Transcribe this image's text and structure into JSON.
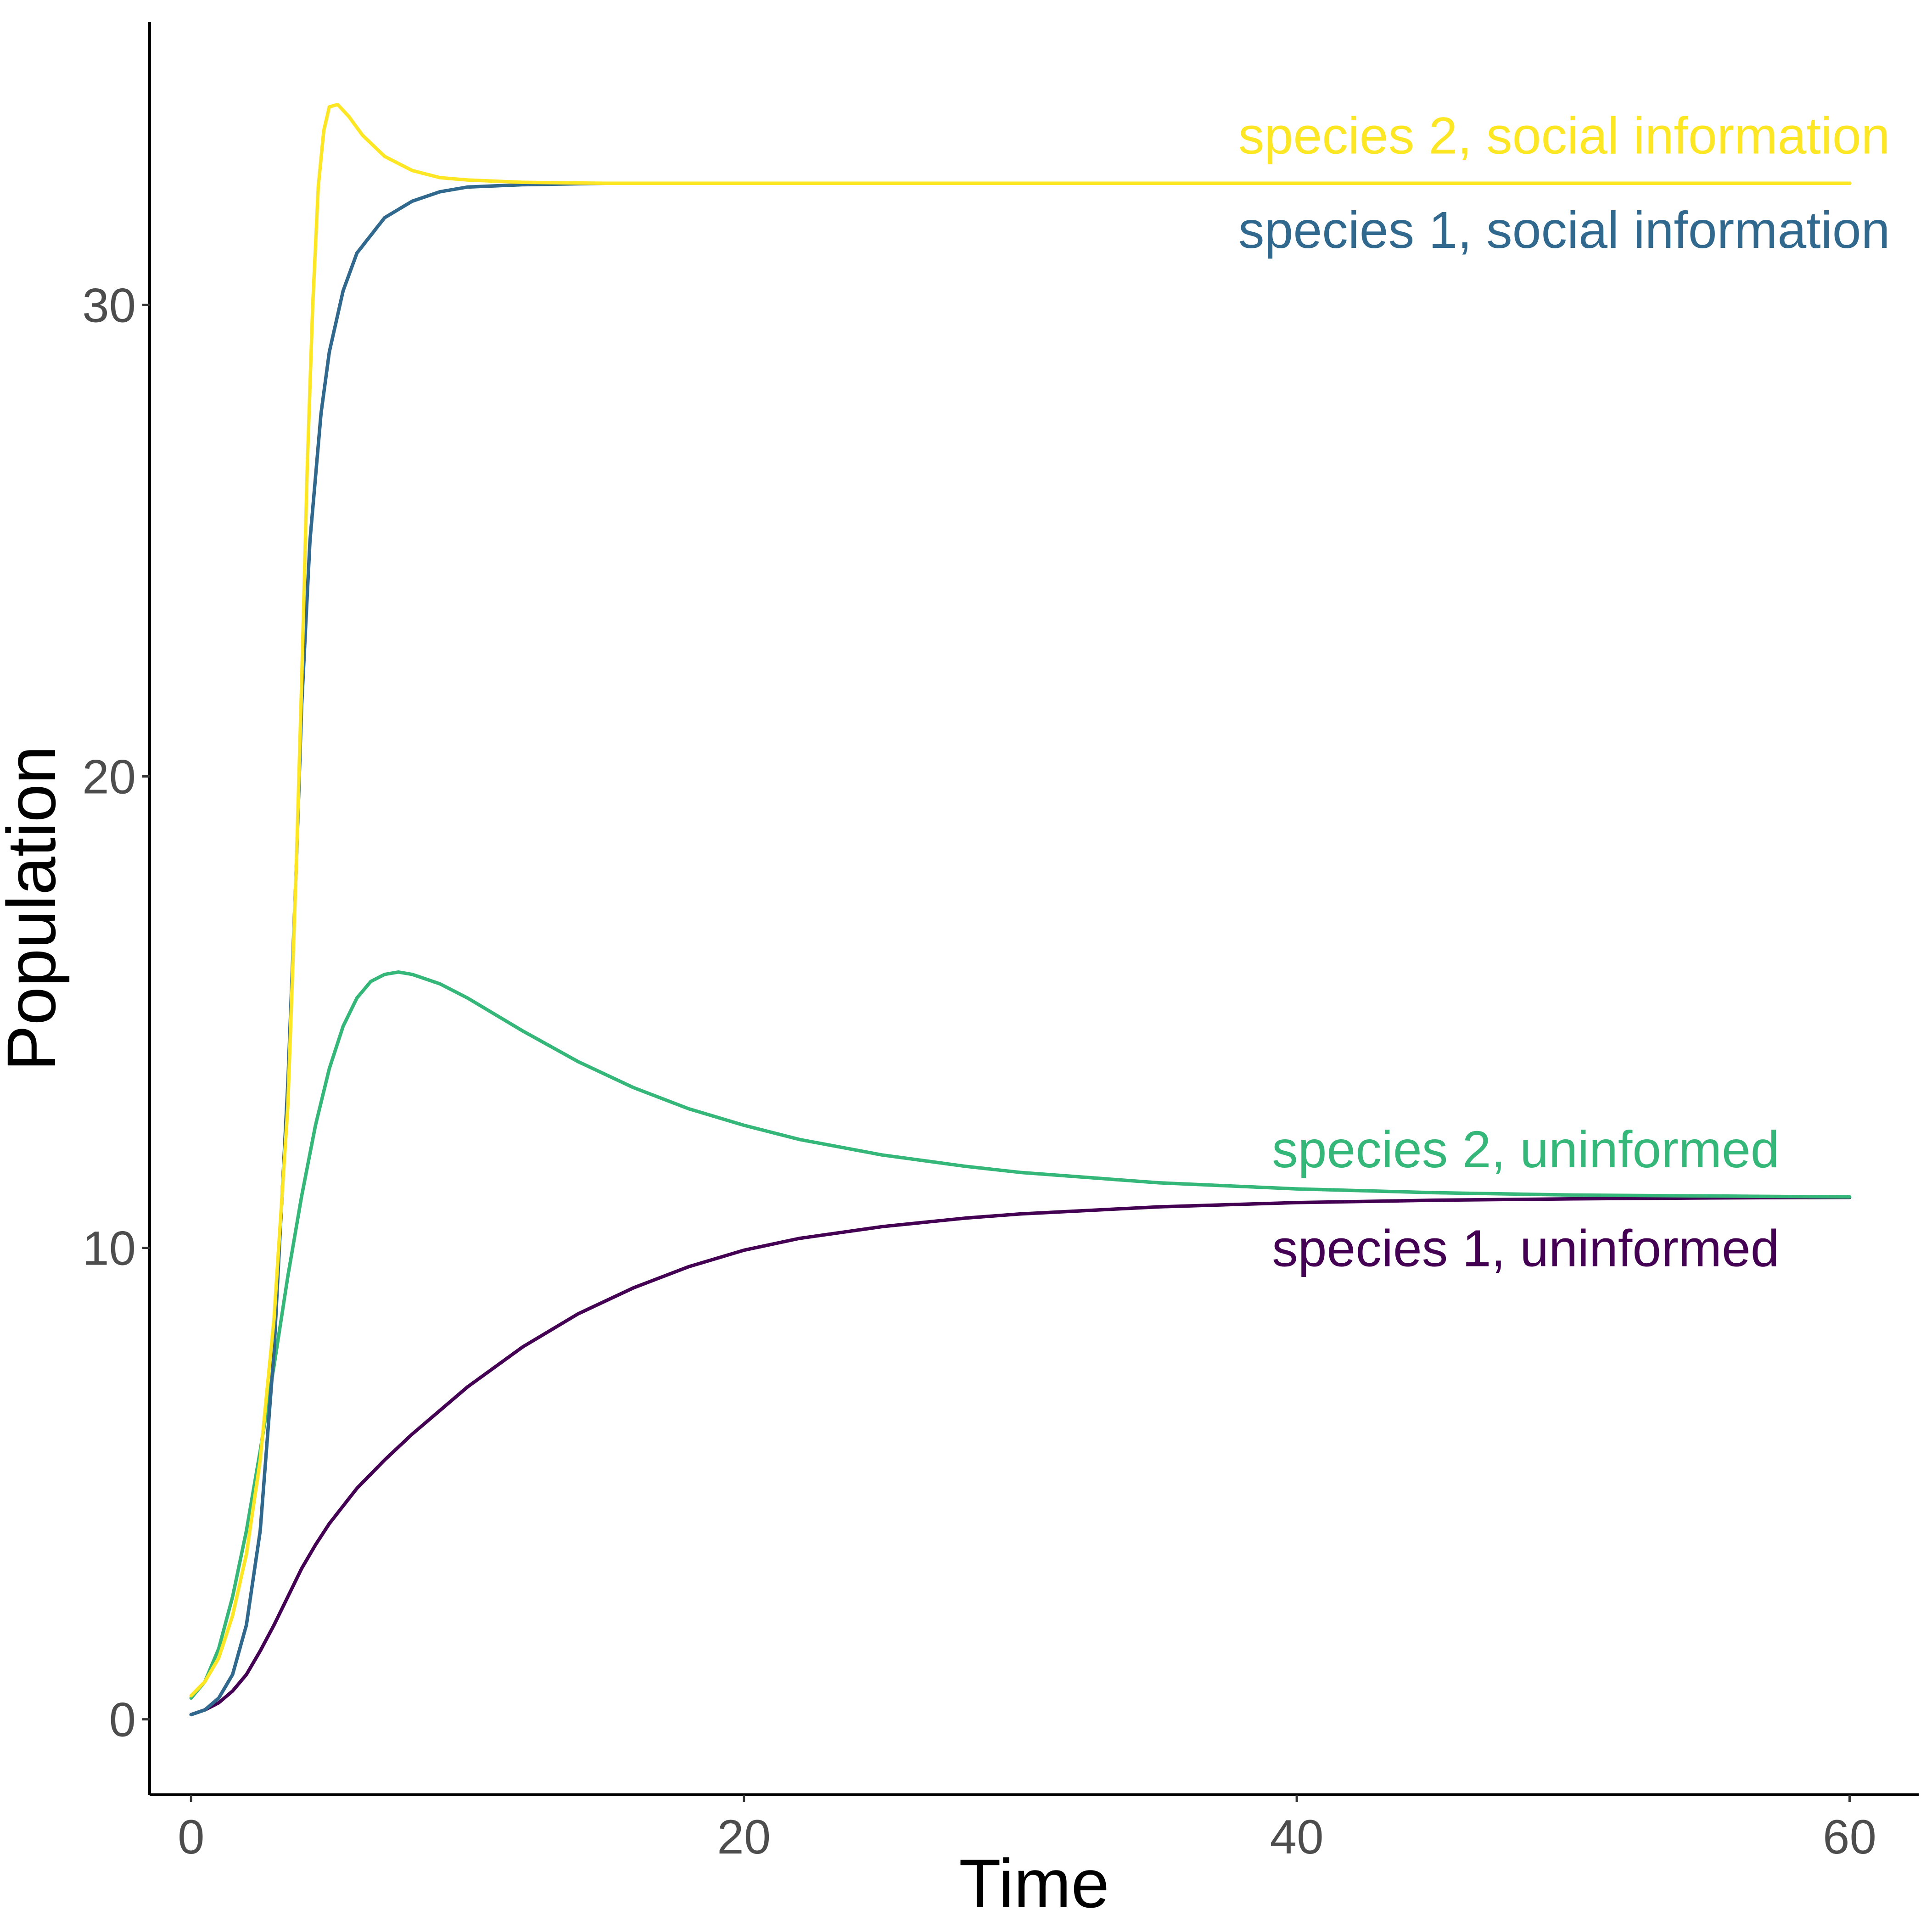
{
  "chart_data": {
    "type": "line",
    "title": "",
    "xlabel": "Time",
    "ylabel": "Population",
    "xlim": [
      -1.5,
      62.5
    ],
    "ylim": [
      -1.6,
      36
    ],
    "x_ticks": [
      0,
      20,
      40,
      60
    ],
    "y_ticks": [
      0,
      10,
      20,
      30
    ],
    "grid": false,
    "legend": "direct labels at right end of lines",
    "series": [
      {
        "name": "species 2, social information",
        "color": "#fde725",
        "label_anchor": [
          60,
          33.6
        ],
        "points": [
          [
            0,
            0.5
          ],
          [
            0.5,
            0.8
          ],
          [
            1,
            1.3
          ],
          [
            1.5,
            2.2
          ],
          [
            2,
            3.5
          ],
          [
            2.5,
            5.5
          ],
          [
            3,
            8.5
          ],
          [
            3.5,
            13
          ],
          [
            3.8,
            18
          ],
          [
            4,
            22
          ],
          [
            4.2,
            26.5
          ],
          [
            4.4,
            30
          ],
          [
            4.6,
            32.5
          ],
          [
            4.8,
            33.7
          ],
          [
            5,
            34.2
          ],
          [
            5.3,
            34.25
          ],
          [
            5.7,
            34.0
          ],
          [
            6.2,
            33.6
          ],
          [
            7,
            33.15
          ],
          [
            8,
            32.85
          ],
          [
            9,
            32.7
          ],
          [
            10,
            32.65
          ],
          [
            12,
            32.6
          ],
          [
            15,
            32.58
          ],
          [
            20,
            32.58
          ],
          [
            30,
            32.58
          ],
          [
            40,
            32.58
          ],
          [
            50,
            32.58
          ],
          [
            60,
            32.58
          ]
        ]
      },
      {
        "name": "species 1, social information",
        "color": "#31688e",
        "label_anchor": [
          60,
          31.6
        ],
        "points": [
          [
            0,
            0.1
          ],
          [
            0.5,
            0.2
          ],
          [
            1,
            0.45
          ],
          [
            1.5,
            0.95
          ],
          [
            2,
            2.0
          ],
          [
            2.5,
            4.0
          ],
          [
            3,
            7.8
          ],
          [
            3.5,
            13.5
          ],
          [
            3.8,
            18
          ],
          [
            4,
            21.5
          ],
          [
            4.3,
            25
          ],
          [
            4.7,
            27.7
          ],
          [
            5,
            29
          ],
          [
            5.5,
            30.3
          ],
          [
            6,
            31.1
          ],
          [
            7,
            31.85
          ],
          [
            8,
            32.2
          ],
          [
            9,
            32.4
          ],
          [
            10,
            32.5
          ],
          [
            12,
            32.55
          ],
          [
            15,
            32.58
          ],
          [
            20,
            32.58
          ],
          [
            30,
            32.58
          ],
          [
            40,
            32.58
          ],
          [
            50,
            32.58
          ],
          [
            60,
            32.58
          ]
        ]
      },
      {
        "name": "species 2, uninformed",
        "color": "#35b779",
        "label_anchor": [
          56,
          12.1
        ],
        "points": [
          [
            0,
            0.45
          ],
          [
            0.5,
            0.8
          ],
          [
            1,
            1.5
          ],
          [
            1.5,
            2.6
          ],
          [
            2,
            4.0
          ],
          [
            2.5,
            5.7
          ],
          [
            3,
            7.5
          ],
          [
            3.5,
            9.4
          ],
          [
            4,
            11.1
          ],
          [
            4.5,
            12.6
          ],
          [
            5,
            13.8
          ],
          [
            5.5,
            14.7
          ],
          [
            6,
            15.3
          ],
          [
            6.5,
            15.65
          ],
          [
            7,
            15.8
          ],
          [
            7.5,
            15.85
          ],
          [
            8,
            15.8
          ],
          [
            9,
            15.6
          ],
          [
            10,
            15.3
          ],
          [
            12,
            14.6
          ],
          [
            14,
            13.95
          ],
          [
            16,
            13.4
          ],
          [
            18,
            12.95
          ],
          [
            20,
            12.6
          ],
          [
            22,
            12.3
          ],
          [
            25,
            11.97
          ],
          [
            28,
            11.73
          ],
          [
            30,
            11.6
          ],
          [
            35,
            11.38
          ],
          [
            40,
            11.25
          ],
          [
            45,
            11.17
          ],
          [
            50,
            11.12
          ],
          [
            55,
            11.1
          ],
          [
            60,
            11.08
          ]
        ]
      },
      {
        "name": "species 1, uninformed",
        "color": "#440154",
        "label_anchor": [
          56,
          10.0
        ],
        "points": [
          [
            0,
            0.1
          ],
          [
            0.5,
            0.2
          ],
          [
            1,
            0.35
          ],
          [
            1.5,
            0.6
          ],
          [
            2,
            0.95
          ],
          [
            2.5,
            1.45
          ],
          [
            3,
            2.0
          ],
          [
            3.5,
            2.6
          ],
          [
            4,
            3.2
          ],
          [
            4.5,
            3.7
          ],
          [
            5,
            4.15
          ],
          [
            6,
            4.9
          ],
          [
            7,
            5.5
          ],
          [
            8,
            6.05
          ],
          [
            9,
            6.55
          ],
          [
            10,
            7.05
          ],
          [
            12,
            7.9
          ],
          [
            14,
            8.6
          ],
          [
            16,
            9.15
          ],
          [
            18,
            9.6
          ],
          [
            20,
            9.95
          ],
          [
            22,
            10.2
          ],
          [
            25,
            10.45
          ],
          [
            28,
            10.63
          ],
          [
            30,
            10.72
          ],
          [
            35,
            10.87
          ],
          [
            40,
            10.96
          ],
          [
            45,
            11.01
          ],
          [
            50,
            11.04
          ],
          [
            55,
            11.06
          ],
          [
            60,
            11.07
          ]
        ]
      }
    ]
  }
}
